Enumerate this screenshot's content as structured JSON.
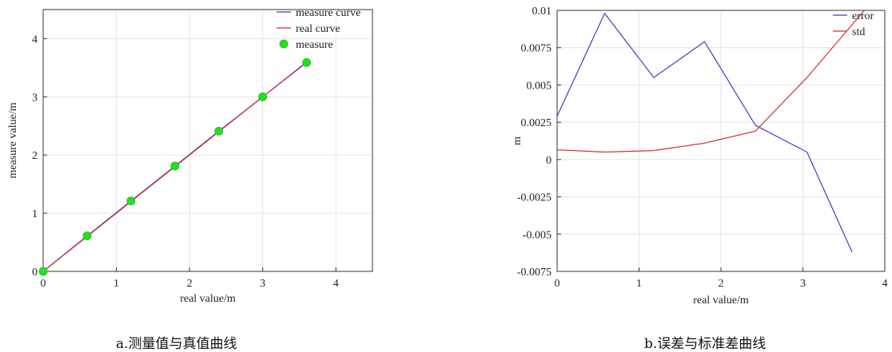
{
  "chart_data": [
    {
      "type": "line",
      "caption": "a.测量值与真值曲线",
      "xlabel": "real value/m",
      "ylabel": "measure value/m",
      "xlim": [
        0,
        4.5
      ],
      "ylim": [
        0,
        4.5
      ],
      "xticks": [
        0,
        1,
        2,
        3,
        4
      ],
      "yticks": [
        0,
        1,
        2,
        3,
        4
      ],
      "grid": true,
      "legend_position": "top-right",
      "series": [
        {
          "name": "measure curve",
          "style": "line",
          "color": "#3c3cc8",
          "x": [
            0,
            0.6,
            1.2,
            1.8,
            2.4,
            3.0,
            3.6
          ],
          "y": [
            0,
            0.61,
            1.21,
            1.81,
            2.41,
            3.0,
            3.59
          ]
        },
        {
          "name": "real curve",
          "style": "line",
          "color": "#d03030",
          "x": [
            0,
            0.6,
            1.2,
            1.8,
            2.4,
            3.0,
            3.6
          ],
          "y": [
            0,
            0.6,
            1.2,
            1.8,
            2.4,
            3.0,
            3.6
          ]
        },
        {
          "name": "measure",
          "style": "marker",
          "color": "#22e022",
          "x": [
            0,
            0.6,
            1.2,
            1.8,
            2.4,
            3.0,
            3.6
          ],
          "y": [
            0,
            0.61,
            1.21,
            1.81,
            2.41,
            3.0,
            3.59
          ]
        }
      ]
    },
    {
      "type": "line",
      "caption": "b.误差与标准差曲线",
      "xlabel": "real value/m",
      "ylabel": "m",
      "xlim": [
        0,
        4
      ],
      "ylim": [
        -0.0075,
        0.01
      ],
      "xticks": [
        0,
        1,
        2,
        3,
        4
      ],
      "yticks": [
        -0.0075,
        -0.005,
        -0.0025,
        0,
        0.0025,
        0.005,
        0.0075,
        0.01
      ],
      "ytick_labels": [
        "-0.0075",
        "-0.005",
        "-0.0025",
        "0",
        "0.0025",
        "0.005",
        "0.0075",
        "0.01"
      ],
      "grid": true,
      "legend_position": "top-right",
      "series": [
        {
          "name": "error",
          "style": "line",
          "color": "#3c3cc8",
          "x": [
            0,
            0.58,
            1.18,
            1.8,
            2.42,
            3.05,
            3.6
          ],
          "y": [
            0.0029,
            0.0098,
            0.0055,
            0.0079,
            0.0023,
            0.0005,
            -0.0062
          ]
        },
        {
          "name": "std",
          "style": "line",
          "color": "#d03030",
          "x": [
            0,
            0.58,
            1.18,
            1.8,
            2.42,
            3.05,
            3.75
          ],
          "y": [
            0.00065,
            0.0005,
            0.0006,
            0.0011,
            0.0019,
            0.0055,
            0.01
          ]
        }
      ]
    }
  ]
}
